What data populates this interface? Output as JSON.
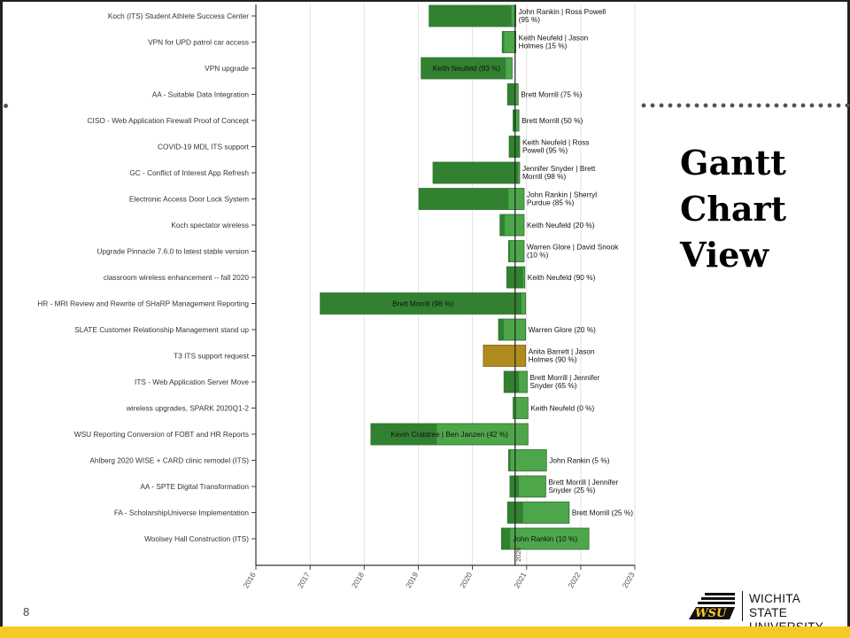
{
  "slide": {
    "side_title": [
      "Gantt",
      "Chart",
      "View"
    ],
    "page_number": "8",
    "logo_text_line1": "Wichita State",
    "logo_text_line2": "University",
    "logo_mark": "WSU",
    "colors": {
      "bar_dark": "#2f7d2f",
      "bar_light": "#4ea64a",
      "bar_gold": "#b08b1e",
      "band": "#f6c925"
    }
  },
  "chart_data": {
    "type": "gantt",
    "x_axis": {
      "ticks": [
        "2016",
        "2017",
        "2018",
        "2019",
        "2020",
        "2021",
        "2022",
        "2023"
      ],
      "range": [
        "2016-01-01",
        "2023-01-01"
      ]
    },
    "today_marker": {
      "date": "2020-10-15",
      "label": "2020"
    },
    "tasks": [
      {
        "name": "Koch (ITS) Student Athlete Success Center",
        "start": "2019-03-15",
        "end": "2020-10-20",
        "progress": 95,
        "label": "John Rankin | Ross Powell (95 %)",
        "label_inside": false,
        "color": "green"
      },
      {
        "name": "VPN for UPD patrol car access",
        "start": "2020-07-20",
        "end": "2020-10-20",
        "progress": 15,
        "label": "Keith Neufeld | Jason Holmes (15 %)",
        "label_inside": false,
        "color": "green"
      },
      {
        "name": "VPN upgrade",
        "start": "2019-01-20",
        "end": "2020-09-25",
        "progress": 93,
        "label": "Keith Neufeld (93 %)",
        "label_inside": true,
        "color": "green"
      },
      {
        "name": "AA - Suitable Data Integration",
        "start": "2020-08-25",
        "end": "2020-11-05",
        "progress": 75,
        "label": "Brett Morrill (75 %)",
        "label_inside": false,
        "color": "green"
      },
      {
        "name": "CISO - Web Application Firewall Proof of Concept",
        "start": "2020-10-01",
        "end": "2020-11-10",
        "progress": 50,
        "label": "Brett Morrill (50 %)",
        "label_inside": false,
        "color": "green"
      },
      {
        "name": "COVID-19 MDL ITS support",
        "start": "2020-09-05",
        "end": "2020-11-15",
        "progress": 95,
        "label": "Keith Neufeld | Ross Powell (95 %)",
        "label_inside": false,
        "color": "green"
      },
      {
        "name": "GC - Conflict of Interest App Refresh",
        "start": "2019-04-10",
        "end": "2020-11-15",
        "progress": 98,
        "label": "Jennifer Snyder | Brett Morrill (98 %)",
        "label_inside": false,
        "color": "green"
      },
      {
        "name": "Electronic Access Door Lock System",
        "start": "2019-01-05",
        "end": "2020-12-15",
        "progress": 85,
        "label": "John Rankin | Sherryl Purdue (85 %)",
        "label_inside": false,
        "color": "green"
      },
      {
        "name": "Koch spectator wireless",
        "start": "2020-07-05",
        "end": "2020-12-15",
        "progress": 20,
        "label": "Keith Neufeld (20 %)",
        "label_inside": false,
        "color": "green"
      },
      {
        "name": "Upgrade Pinnacle 7.6.0 to latest stable version",
        "start": "2020-09-01",
        "end": "2020-12-15",
        "progress": 10,
        "label": "Warren Glore | David Snook (10 %)",
        "label_inside": false,
        "color": "green"
      },
      {
        "name": "classroom wireless enhancement -- fall 2020",
        "start": "2020-08-20",
        "end": "2020-12-20",
        "progress": 90,
        "label": "Keith Neufeld (90 %)",
        "label_inside": false,
        "color": "green"
      },
      {
        "name": "HR - MRI Review and Rewrite of SHaRP Management Reporting",
        "start": "2017-03-10",
        "end": "2020-12-25",
        "progress": 98,
        "label": "Brett Morrill (98 %)",
        "label_inside": true,
        "color": "green"
      },
      {
        "name": "SLATE Customer Relationship Management stand up",
        "start": "2020-06-25",
        "end": "2020-12-25",
        "progress": 20,
        "label": "Warren Glore (20 %)",
        "label_inside": false,
        "color": "green"
      },
      {
        "name": "T3 ITS support request",
        "start": "2020-03-15",
        "end": "2020-12-25",
        "progress": 90,
        "label": "Anita Barrett | Jason Holmes (90 %)",
        "label_inside": false,
        "color": "gold"
      },
      {
        "name": "ITS - Web Application Server Move",
        "start": "2020-08-01",
        "end": "2021-01-05",
        "progress": 65,
        "label": "Brett Morrill | Jennifer Snyder (65 %)",
        "label_inside": false,
        "color": "green"
      },
      {
        "name": "wireless upgrades, SPARK 2020Q1-2",
        "start": "2020-10-01",
        "end": "2021-01-10",
        "progress": 0,
        "label": "Keith Neufeld (0 %)",
        "label_inside": false,
        "color": "green"
      },
      {
        "name": "WSU Reporting Conversion of FOBT and HR Reports",
        "start": "2018-02-15",
        "end": "2021-01-10",
        "progress": 42,
        "label": "Kevin Crabtree | Ben Janzen (42 %)",
        "label_inside": true,
        "color": "green"
      },
      {
        "name": "Ahlberg 2020 WISE + CARD clinic remodel (ITS)",
        "start": "2020-09-01",
        "end": "2021-05-15",
        "progress": 5,
        "label": "John Rankin (5 %)",
        "label_inside": false,
        "color": "green"
      },
      {
        "name": "AA - SPTE Digital Transformation",
        "start": "2020-09-10",
        "end": "2021-05-10",
        "progress": 25,
        "label": "Brett Morrill | Jennifer Snyder (25 %)",
        "label_inside": false,
        "color": "green"
      },
      {
        "name": "FA - ScholarshipUniverse Implementation",
        "start": "2020-08-25",
        "end": "2021-10-15",
        "progress": 25,
        "label": "Brett Morrill (25 %)",
        "label_inside": false,
        "color": "green"
      },
      {
        "name": "Woolsey Hall Construction (ITS)",
        "start": "2020-07-15",
        "end": "2022-02-25",
        "progress": 10,
        "label": "John Rankin (10 %)",
        "label_inside": true,
        "color": "green"
      }
    ]
  }
}
